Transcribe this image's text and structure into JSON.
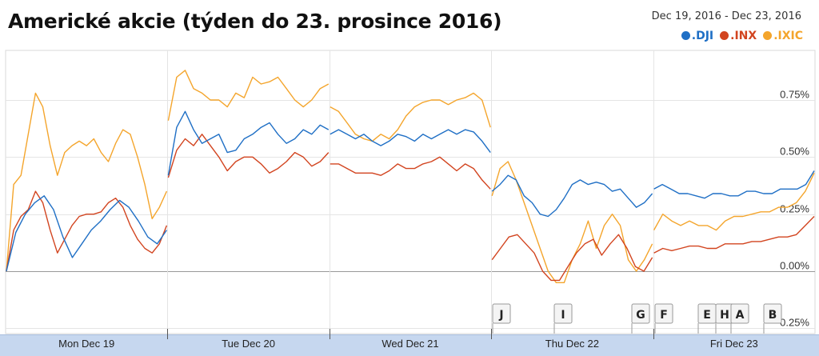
{
  "title": "Americké akcie (týden do 23. prosince 2016)",
  "date_range": "Dec 19, 2016  -  Dec 23, 2016",
  "chart_data": {
    "type": "line",
    "title": "Americké akcie (týden do 23. prosince 2016)",
    "x_days": [
      "Mon Dec 19",
      "Tue Dec 20",
      "Wed Dec 21",
      "Thu Dec 22",
      "Fri Dec 23"
    ],
    "y_ticks": [
      "0.75%",
      "0.50%",
      "0.25%",
      "0.00%",
      "-0.25%"
    ],
    "y_tick_values": [
      0.75,
      0.5,
      0.25,
      0.0,
      -0.25
    ],
    "ylim": [
      -0.28,
      0.98
    ],
    "grid": true,
    "legend_position": "top-right",
    "series": [
      {
        "name": ".DJI",
        "color": "#1f6fc5",
        "sessions": [
          [
            0.0,
            0.17,
            0.25,
            0.3,
            0.33,
            0.27,
            0.15,
            0.06,
            0.12,
            0.18,
            0.22,
            0.27,
            0.31,
            0.28,
            0.22,
            0.15,
            0.12,
            0.18
          ],
          [
            0.42,
            0.63,
            0.7,
            0.62,
            0.56,
            0.58,
            0.6,
            0.52,
            0.53,
            0.58,
            0.6,
            0.63,
            0.65,
            0.6,
            0.56,
            0.58,
            0.62,
            0.6,
            0.64,
            0.62
          ],
          [
            0.6,
            0.62,
            0.6,
            0.58,
            0.6,
            0.57,
            0.55,
            0.57,
            0.6,
            0.59,
            0.57,
            0.6,
            0.58,
            0.6,
            0.62,
            0.6,
            0.62,
            0.61,
            0.57,
            0.52
          ],
          [
            0.35,
            0.38,
            0.42,
            0.4,
            0.33,
            0.3,
            0.25,
            0.24,
            0.27,
            0.32,
            0.38,
            0.4,
            0.38,
            0.39,
            0.38,
            0.35,
            0.36,
            0.32,
            0.28,
            0.3,
            0.34
          ],
          [
            0.36,
            0.38,
            0.36,
            0.34,
            0.34,
            0.33,
            0.32,
            0.34,
            0.34,
            0.33,
            0.33,
            0.35,
            0.35,
            0.34,
            0.34,
            0.36,
            0.36,
            0.36,
            0.38,
            0.44
          ]
        ]
      },
      {
        "name": ".INX",
        "color": "#d2441f",
        "sessions": [
          [
            0.0,
            0.18,
            0.24,
            0.27,
            0.35,
            0.3,
            0.18,
            0.08,
            0.14,
            0.2,
            0.24,
            0.25,
            0.25,
            0.26,
            0.3,
            0.32,
            0.28,
            0.2,
            0.14,
            0.1,
            0.08,
            0.12,
            0.2
          ],
          [
            0.41,
            0.53,
            0.58,
            0.55,
            0.6,
            0.55,
            0.5,
            0.44,
            0.48,
            0.5,
            0.5,
            0.47,
            0.43,
            0.45,
            0.48,
            0.52,
            0.5,
            0.46,
            0.48,
            0.52
          ],
          [
            0.47,
            0.47,
            0.45,
            0.43,
            0.43,
            0.43,
            0.42,
            0.44,
            0.47,
            0.45,
            0.45,
            0.47,
            0.48,
            0.5,
            0.47,
            0.44,
            0.47,
            0.45,
            0.4,
            0.36
          ],
          [
            0.05,
            0.1,
            0.15,
            0.16,
            0.12,
            0.08,
            0.0,
            -0.04,
            -0.04,
            0.02,
            0.08,
            0.12,
            0.14,
            0.07,
            0.12,
            0.16,
            0.1,
            0.02,
            0.0,
            0.06
          ],
          [
            0.08,
            0.1,
            0.09,
            0.1,
            0.11,
            0.11,
            0.1,
            0.1,
            0.12,
            0.12,
            0.12,
            0.13,
            0.13,
            0.14,
            0.15,
            0.15,
            0.16,
            0.2,
            0.24
          ]
        ]
      },
      {
        "name": ".IXIC",
        "color": "#f4a52c",
        "sessions": [
          [
            0.0,
            0.38,
            0.42,
            0.6,
            0.78,
            0.72,
            0.55,
            0.42,
            0.52,
            0.55,
            0.57,
            0.55,
            0.58,
            0.52,
            0.48,
            0.56,
            0.62,
            0.6,
            0.5,
            0.38,
            0.23,
            0.28,
            0.35
          ],
          [
            0.66,
            0.85,
            0.88,
            0.8,
            0.78,
            0.75,
            0.75,
            0.72,
            0.78,
            0.76,
            0.85,
            0.82,
            0.83,
            0.85,
            0.8,
            0.75,
            0.72,
            0.75,
            0.8,
            0.82
          ],
          [
            0.72,
            0.7,
            0.65,
            0.6,
            0.58,
            0.57,
            0.6,
            0.58,
            0.62,
            0.68,
            0.72,
            0.74,
            0.75,
            0.75,
            0.73,
            0.75,
            0.76,
            0.78,
            0.75,
            0.63
          ],
          [
            0.33,
            0.45,
            0.48,
            0.4,
            0.3,
            0.2,
            0.1,
            0.0,
            -0.05,
            -0.05,
            0.05,
            0.12,
            0.22,
            0.1,
            0.2,
            0.25,
            0.2,
            0.05,
            0.0,
            0.05,
            0.12
          ],
          [
            0.18,
            0.25,
            0.22,
            0.2,
            0.22,
            0.2,
            0.2,
            0.18,
            0.22,
            0.24,
            0.24,
            0.25,
            0.26,
            0.26,
            0.28,
            0.28,
            0.3,
            0.35,
            0.43
          ]
        ]
      }
    ],
    "annotations": [
      "J",
      "I",
      "G",
      "F",
      "E",
      "H",
      "A",
      "B"
    ]
  }
}
